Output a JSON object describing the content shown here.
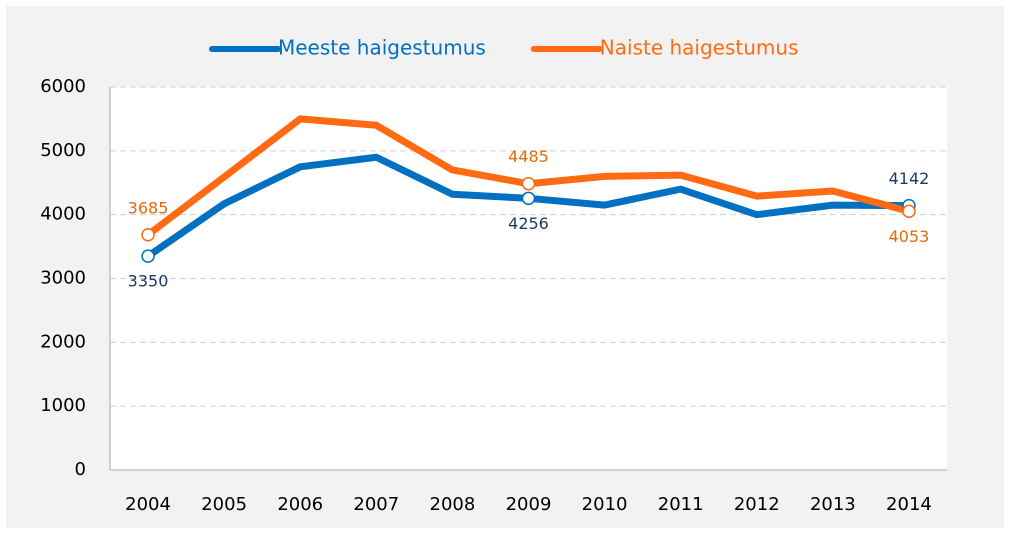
{
  "chart_data": {
    "type": "line",
    "categories": [
      "2004",
      "2005",
      "2006",
      "2007",
      "2008",
      "2009",
      "2010",
      "2011",
      "2012",
      "2013",
      "2014"
    ],
    "series": [
      {
        "name": "Meeste haigestumus",
        "color": "#0070c0",
        "label_color": "#1f3864",
        "values": [
          3350,
          4170,
          4750,
          4900,
          4320,
          4256,
          4150,
          4400,
          4000,
          4150,
          4142
        ],
        "value_labels": [
          "3350",
          null,
          null,
          null,
          null,
          "4256",
          null,
          null,
          null,
          null,
          "4142"
        ]
      },
      {
        "name": "Naiste haigestumus",
        "color": "#ff6a13",
        "label_color": "#e36c0a",
        "values": [
          3685,
          4590,
          5500,
          5400,
          4700,
          4485,
          4600,
          4620,
          4290,
          4370,
          4053
        ],
        "value_labels": [
          "3685",
          null,
          null,
          null,
          null,
          "4485",
          null,
          null,
          null,
          null,
          "4053"
        ]
      }
    ],
    "ylim": [
      0,
      6000
    ],
    "yticks": [
      0,
      1000,
      2000,
      3000,
      4000,
      5000,
      6000
    ],
    "grid": true,
    "legend": "top"
  }
}
